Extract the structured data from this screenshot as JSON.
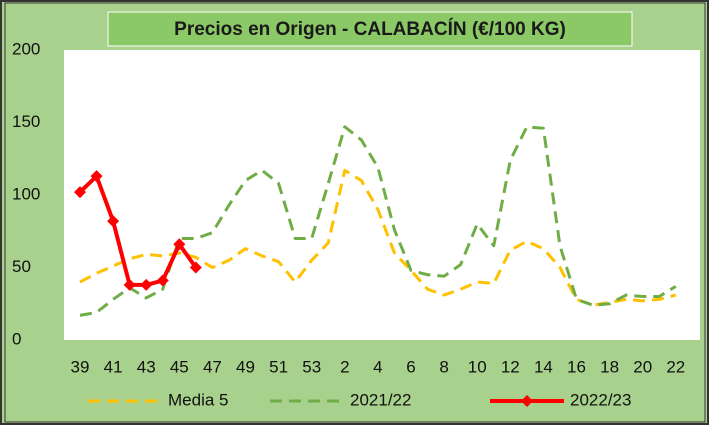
{
  "chart_data": {
    "type": "line",
    "title": "Precios en Origen - CALABACÍN (€/100 KG)",
    "categories": [
      "39",
      null,
      "41",
      null,
      "43",
      null,
      "45",
      null,
      "47",
      null,
      "49",
      null,
      "51",
      null,
      "53",
      null,
      "2",
      null,
      "4",
      null,
      "6",
      null,
      "8",
      null,
      "10",
      null,
      "12",
      null,
      "14",
      null,
      "16",
      null,
      "18",
      null,
      "20",
      null,
      "22"
    ],
    "series": [
      {
        "name": "Media 5",
        "color": "#ffc000",
        "dash": true,
        "values": [
          40,
          46,
          51,
          56,
          59,
          58,
          60,
          57,
          50,
          55,
          63,
          58,
          54,
          40,
          55,
          67,
          117,
          110,
          90,
          60,
          48,
          35,
          31,
          35,
          40,
          39,
          62,
          68,
          63,
          50,
          28,
          24,
          26,
          28,
          27,
          28,
          31
        ]
      },
      {
        "name": "2021/22",
        "color": "#70ad47",
        "dash": true,
        "values": [
          17,
          19,
          28,
          36,
          29,
          35,
          70,
          70,
          74,
          93,
          110,
          117,
          108,
          70,
          70,
          108,
          147,
          138,
          119,
          76,
          48,
          45,
          44,
          52,
          80,
          65,
          124,
          147,
          146,
          65,
          28,
          24,
          25,
          31,
          30,
          30,
          37
        ]
      },
      {
        "name": "2022/23",
        "color": "#ff0000",
        "dash": false,
        "markers": true,
        "values": [
          102,
          113,
          82,
          38,
          38,
          41,
          66,
          50,
          null,
          null,
          null,
          null,
          null,
          null,
          null,
          null,
          null,
          null,
          null,
          null,
          null,
          null,
          null,
          null,
          null,
          null,
          null,
          null,
          null,
          null,
          null,
          null,
          null,
          null,
          null,
          null,
          null
        ]
      }
    ],
    "ylim": [
      0,
      200
    ],
    "yticks": [
      0,
      50,
      100,
      150,
      200
    ],
    "grid": false,
    "legend": "bottom"
  }
}
